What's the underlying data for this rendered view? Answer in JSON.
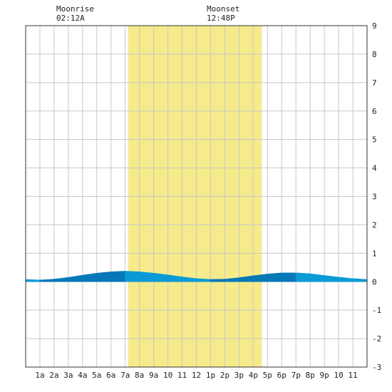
{
  "moon_events": [
    {
      "label": "Moonrise",
      "time": "02:12A",
      "hour": 2.2
    },
    {
      "label": "Moonset",
      "time": "12:48P",
      "hour": 12.8
    }
  ],
  "colors": {
    "daylight": "#f5eb8a",
    "grid": "#c8c8c8",
    "tide_light": "#0a9ad6",
    "tide_dark": "#0678b8",
    "text": "#222222"
  },
  "chart_data": {
    "type": "area",
    "title": "",
    "xlabel": "",
    "ylabel": "",
    "xlim": [
      0,
      24
    ],
    "ylim": [
      -3,
      9
    ],
    "yticks": [
      -3,
      -2,
      -1,
      0,
      1,
      2,
      3,
      4,
      5,
      6,
      7,
      8,
      9
    ],
    "xtick_labels": [
      "1a",
      "2a",
      "3a",
      "4a",
      "5a",
      "6a",
      "7a",
      "8a",
      "9a",
      "10",
      "11",
      "12",
      "1p",
      "2p",
      "3p",
      "4p",
      "5p",
      "6p",
      "7p",
      "8p",
      "9p",
      "10",
      "11"
    ],
    "daylight_hours": [
      7.2,
      16.6
    ],
    "grid": true,
    "series": [
      {
        "x": [
          0,
          1,
          2,
          3,
          4,
          5,
          6,
          7,
          8,
          9,
          10,
          11,
          12,
          13,
          14,
          15,
          16,
          17,
          18,
          19,
          20,
          21,
          22,
          23,
          24
        ],
        "values": [
          0.08,
          0.06,
          0.09,
          0.15,
          0.23,
          0.3,
          0.35,
          0.37,
          0.35,
          0.3,
          0.24,
          0.17,
          0.11,
          0.08,
          0.09,
          0.14,
          0.21,
          0.27,
          0.31,
          0.31,
          0.28,
          0.22,
          0.16,
          0.11,
          0.08
        ]
      }
    ]
  }
}
